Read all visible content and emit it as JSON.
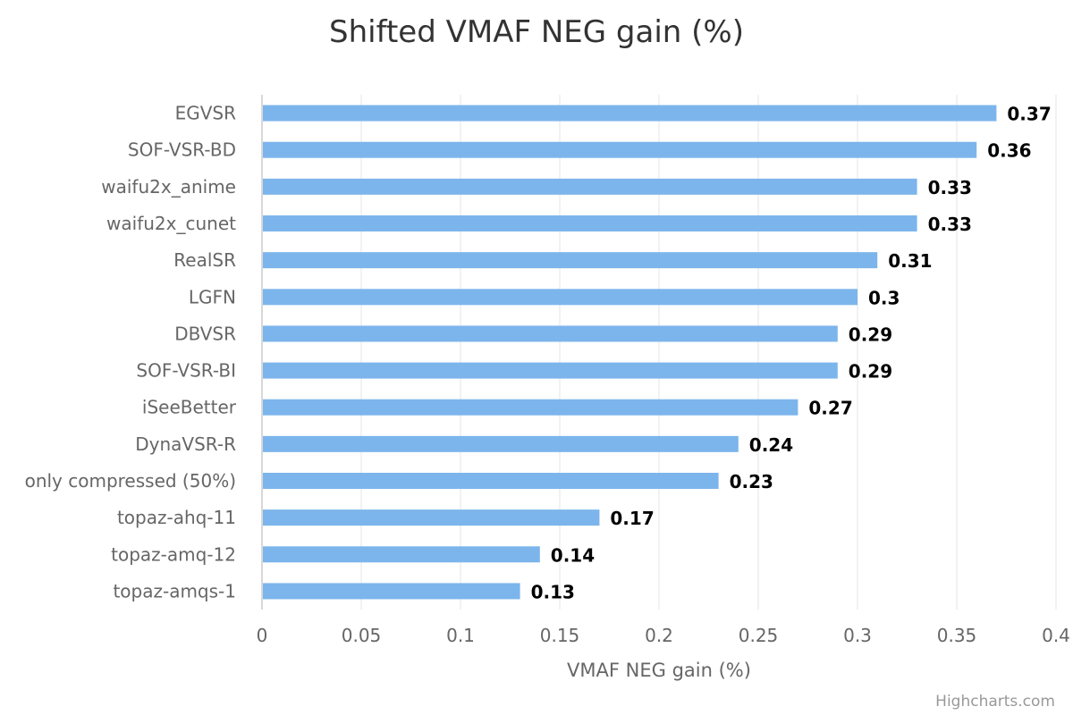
{
  "chart_data": {
    "type": "bar",
    "orientation": "horizontal",
    "title": "Shifted VMAF NEG gain (%)",
    "xlabel": "VMAF NEG gain (%)",
    "ylabel": "",
    "categories": [
      "EGVSR",
      "SOF-VSR-BD",
      "waifu2x_anime",
      "waifu2x_cunet",
      "RealSR",
      "LGFN",
      "DBVSR",
      "SOF-VSR-BI",
      "iSeeBetter",
      "DynaVSR-R",
      "only compressed (50%)",
      "topaz-ahq-11",
      "topaz-amq-12",
      "topaz-amqs-1"
    ],
    "values": [
      0.37,
      0.36,
      0.33,
      0.33,
      0.31,
      0.3,
      0.29,
      0.29,
      0.27,
      0.24,
      0.23,
      0.17,
      0.14,
      0.13
    ],
    "data_labels": [
      "0.37",
      "0.36",
      "0.33",
      "0.33",
      "0.31",
      "0.3",
      "0.29",
      "0.29",
      "0.27",
      "0.24",
      "0.23",
      "0.17",
      "0.14",
      "0.13"
    ],
    "xlim": [
      0,
      0.4
    ],
    "ticks": [
      0,
      0.05,
      0.1,
      0.15,
      0.2,
      0.25,
      0.3,
      0.35,
      0.4
    ],
    "tick_labels": [
      "0",
      "0.05",
      "0.1",
      "0.15",
      "0.2",
      "0.25",
      "0.3",
      "0.35",
      "0.4"
    ],
    "grid": "vertical",
    "legend": "none",
    "bar_color": "#7cb5ec",
    "credits": "Highcharts.com"
  }
}
